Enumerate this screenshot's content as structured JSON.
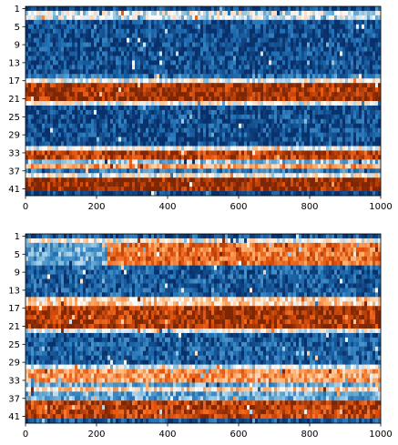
{
  "chart_data": [
    {
      "type": "heatmap",
      "panel": "top",
      "x_ticks": [
        0,
        200,
        400,
        600,
        800,
        1000
      ],
      "y_ticks": [
        1,
        5,
        9,
        13,
        17,
        21,
        25,
        29,
        33,
        37,
        41
      ],
      "xlim": [
        0,
        1000
      ],
      "ylim": [
        1,
        42
      ],
      "colormap": [
        "#08306b",
        "#2171b5",
        "#6baed6",
        "#ffffff",
        "#fdae6b",
        "#e6550d",
        "#7f2704"
      ],
      "row_profile": [
        {
          "rows": [
            1,
            1
          ],
          "level": 0.05
        },
        {
          "rows": [
            2,
            3
          ],
          "level": 0.45
        },
        {
          "rows": [
            4,
            15
          ],
          "level": 0.08
        },
        {
          "rows": [
            16,
            16
          ],
          "level": 0.2
        },
        {
          "rows": [
            17,
            17
          ],
          "level": 0.5
        },
        {
          "rows": [
            18,
            21
          ],
          "level": 0.95
        },
        {
          "rows": [
            22,
            22
          ],
          "level": 0.5
        },
        {
          "rows": [
            23,
            31
          ],
          "level": 0.08
        },
        {
          "rows": [
            32,
            32
          ],
          "level": 0.5
        },
        {
          "rows": [
            33,
            34
          ],
          "level": 0.9
        },
        {
          "rows": [
            35,
            35
          ],
          "level": 0.35
        },
        {
          "rows": [
            36,
            36
          ],
          "level": 0.7
        },
        {
          "rows": [
            37,
            37
          ],
          "level": 0.2
        },
        {
          "rows": [
            38,
            38
          ],
          "level": 0.5
        },
        {
          "rows": [
            39,
            41
          ],
          "level": 0.97
        },
        {
          "rows": [
            42,
            42
          ],
          "level": 0.05
        }
      ]
    },
    {
      "type": "heatmap",
      "panel": "bottom",
      "x_ticks": [
        0,
        200,
        400,
        600,
        800,
        1000
      ],
      "y_ticks": [
        1,
        5,
        9,
        13,
        17,
        21,
        25,
        29,
        33,
        37,
        41
      ],
      "xlim": [
        0,
        1000
      ],
      "ylim": [
        1,
        42
      ],
      "colormap": [
        "#08306b",
        "#2171b5",
        "#6baed6",
        "#ffffff",
        "#fdae6b",
        "#e6550d",
        "#7f2704"
      ],
      "row_profile": [
        {
          "rows": [
            1,
            1
          ],
          "level": 0.1
        },
        {
          "rows": [
            2,
            2
          ],
          "level": 0.5
        },
        {
          "rows": [
            3,
            7
          ],
          "level": 0.78
        },
        {
          "rows": [
            8,
            14
          ],
          "level": 0.12
        },
        {
          "rows": [
            15,
            16
          ],
          "level": 0.6
        },
        {
          "rows": [
            17,
            21
          ],
          "level": 0.92
        },
        {
          "rows": [
            22,
            22
          ],
          "level": 0.5
        },
        {
          "rows": [
            23,
            29
          ],
          "level": 0.12
        },
        {
          "rows": [
            30,
            30
          ],
          "level": 0.45
        },
        {
          "rows": [
            31,
            33
          ],
          "level": 0.7
        },
        {
          "rows": [
            34,
            34
          ],
          "level": 0.3
        },
        {
          "rows": [
            35,
            35
          ],
          "level": 0.6
        },
        {
          "rows": [
            36,
            37
          ],
          "level": 0.3
        },
        {
          "rows": [
            38,
            41
          ],
          "level": 0.9
        },
        {
          "rows": [
            42,
            42
          ],
          "level": 0.1
        }
      ],
      "early_variation": {
        "x_until": 230,
        "rows": [
          3,
          7
        ],
        "level": 0.3
      }
    }
  ]
}
